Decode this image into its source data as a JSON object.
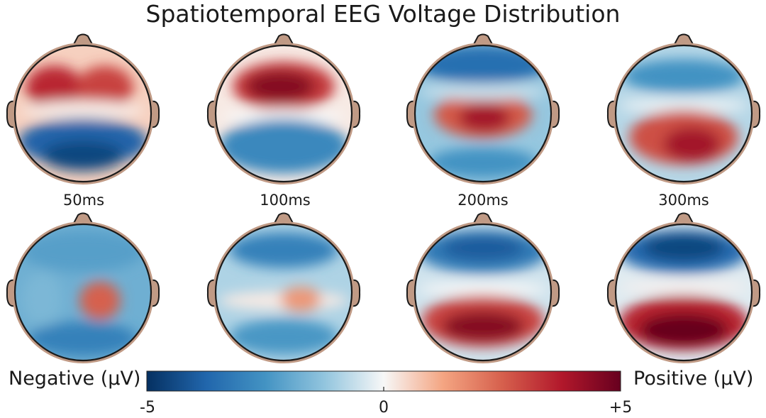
{
  "chart_data": {
    "type": "heatmap",
    "title": "Spatiotemporal EEG Voltage Distribution",
    "time_labels": [
      "50ms",
      "100ms",
      "200ms",
      "300ms"
    ],
    "colorbar": {
      "negative_label": "Negative (µV)",
      "positive_label": "Positive (µV)",
      "min": -5,
      "max": 5,
      "tick_labels": [
        "-5",
        "0",
        "+5"
      ],
      "colors": [
        "#053061",
        "#2166ac",
        "#4393c3",
        "#92c5de",
        "#f7f7f7",
        "#f4a582",
        "#d6604d",
        "#b2182b",
        "#67001f"
      ]
    },
    "maps": [
      {
        "row": 1,
        "time": "50ms",
        "distribution": "frontal positive (bilateral), posterior negative",
        "min_uv": -4.5,
        "max_uv": 3.5
      },
      {
        "row": 1,
        "time": "100ms",
        "distribution": "frontal positive, posterior negative",
        "min_uv": -3.0,
        "max_uv": 4.5
      },
      {
        "row": 1,
        "time": "200ms",
        "distribution": "central positive, frontal and occipital negative",
        "min_uv": -3.5,
        "max_uv": 4.0
      },
      {
        "row": 1,
        "time": "300ms",
        "distribution": "posterior positive, frontal negative",
        "min_uv": -2.5,
        "max_uv": 4.0
      },
      {
        "row": 2,
        "time": "50ms",
        "distribution": "right-central positive, broadly negative",
        "min_uv": -3.0,
        "max_uv": 2.5
      },
      {
        "row": 2,
        "time": "100ms",
        "distribution": "weak central positive, frontal negative",
        "min_uv": -3.0,
        "max_uv": 1.5
      },
      {
        "row": 2,
        "time": "200ms",
        "distribution": "posterior positive, frontal negative",
        "min_uv": -4.0,
        "max_uv": 4.5
      },
      {
        "row": 2,
        "time": "300ms",
        "distribution": "strong posterior positive, strong frontal negative",
        "min_uv": -4.5,
        "max_uv": 5.0
      }
    ]
  }
}
